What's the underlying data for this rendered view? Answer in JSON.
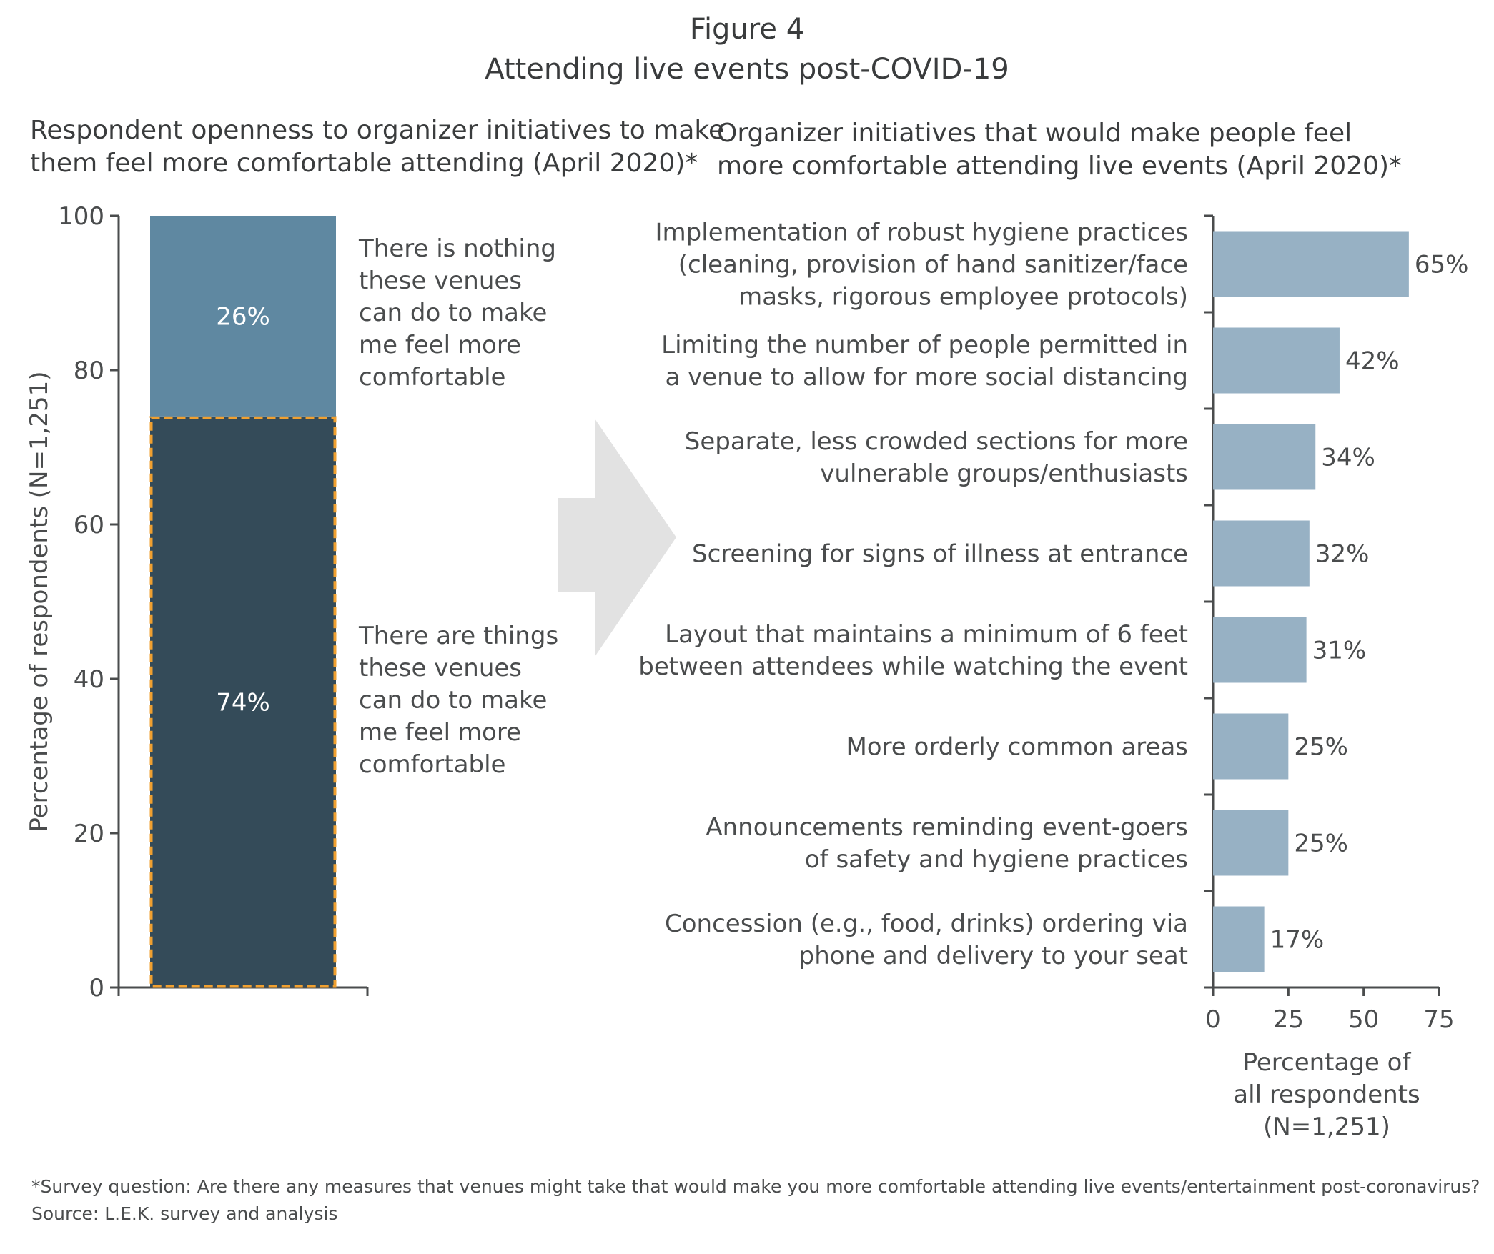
{
  "figure": {
    "label": "Figure 4",
    "title": "Attending live events post-COVID-19"
  },
  "left_panel": {
    "title_lines": [
      "Respondent openness to organizer initiatives to make",
      "them feel more comfortable attending (April 2020)*"
    ]
  },
  "right_panel": {
    "title_lines": [
      "Organizer initiatives that would make people feel",
      "more comfortable attending live events (April 2020)*"
    ]
  },
  "footnote": {
    "survey": "*Survey question: Are there any measures that venues might take that would make you more comfortable attending live events/entertainment post-coronavirus?",
    "source": "Source: L.E.K. survey and analysis"
  },
  "colors": {
    "segment_top": "#5f88a1",
    "segment_bottom": "#344b59",
    "highlight_border": "#f0a030",
    "bar": "#97b1c4",
    "arrow": "#e2e2e2",
    "axis": "#4a4c4d"
  },
  "chart_data": [
    {
      "type": "bar",
      "stacked": true,
      "ylabel": "Percentage of respondents (N=1,251)",
      "ylim": [
        0,
        100
      ],
      "yticks": [
        0,
        20,
        40,
        60,
        80,
        100
      ],
      "series": [
        {
          "value": 74,
          "label": "74%",
          "description_lines": [
            "There are things",
            "these venues",
            "can do to make",
            "me feel more",
            "comfortable"
          ],
          "highlighted": true
        },
        {
          "value": 26,
          "label": "26%",
          "description_lines": [
            "There is nothing",
            "these venues",
            "can do to make",
            "me feel more",
            "comfortable"
          ],
          "highlighted": false
        }
      ]
    },
    {
      "type": "bar",
      "orientation": "horizontal",
      "xlim": [
        0,
        75
      ],
      "xticks": [
        0,
        25,
        50,
        75
      ],
      "xlabel_lines": [
        "Percentage of",
        "all respondents",
        "(N=1,251)"
      ],
      "categories": [
        [
          "Implementation of robust hygiene practices",
          "(cleaning, provision of hand sanitizer/face",
          "masks, rigorous employee protocols)"
        ],
        [
          "Limiting the number of people permitted in",
          "a venue to allow for more social distancing"
        ],
        [
          "Separate, less crowded sections for more",
          "vulnerable groups/enthusiasts"
        ],
        [
          "Screening for signs of illness at entrance"
        ],
        [
          "Layout that maintains a minimum of 6 feet",
          "between attendees while watching the event"
        ],
        [
          "More orderly common areas"
        ],
        [
          "Announcements reminding event-goers",
          "of safety and hygiene practices"
        ],
        [
          "Concession (e.g., food, drinks) ordering via",
          "phone and delivery to your seat"
        ]
      ],
      "values": [
        65,
        42,
        34,
        32,
        31,
        25,
        25,
        17
      ],
      "value_labels": [
        "65%",
        "42%",
        "34%",
        "32%",
        "31%",
        "25%",
        "25%",
        "17%"
      ]
    }
  ]
}
